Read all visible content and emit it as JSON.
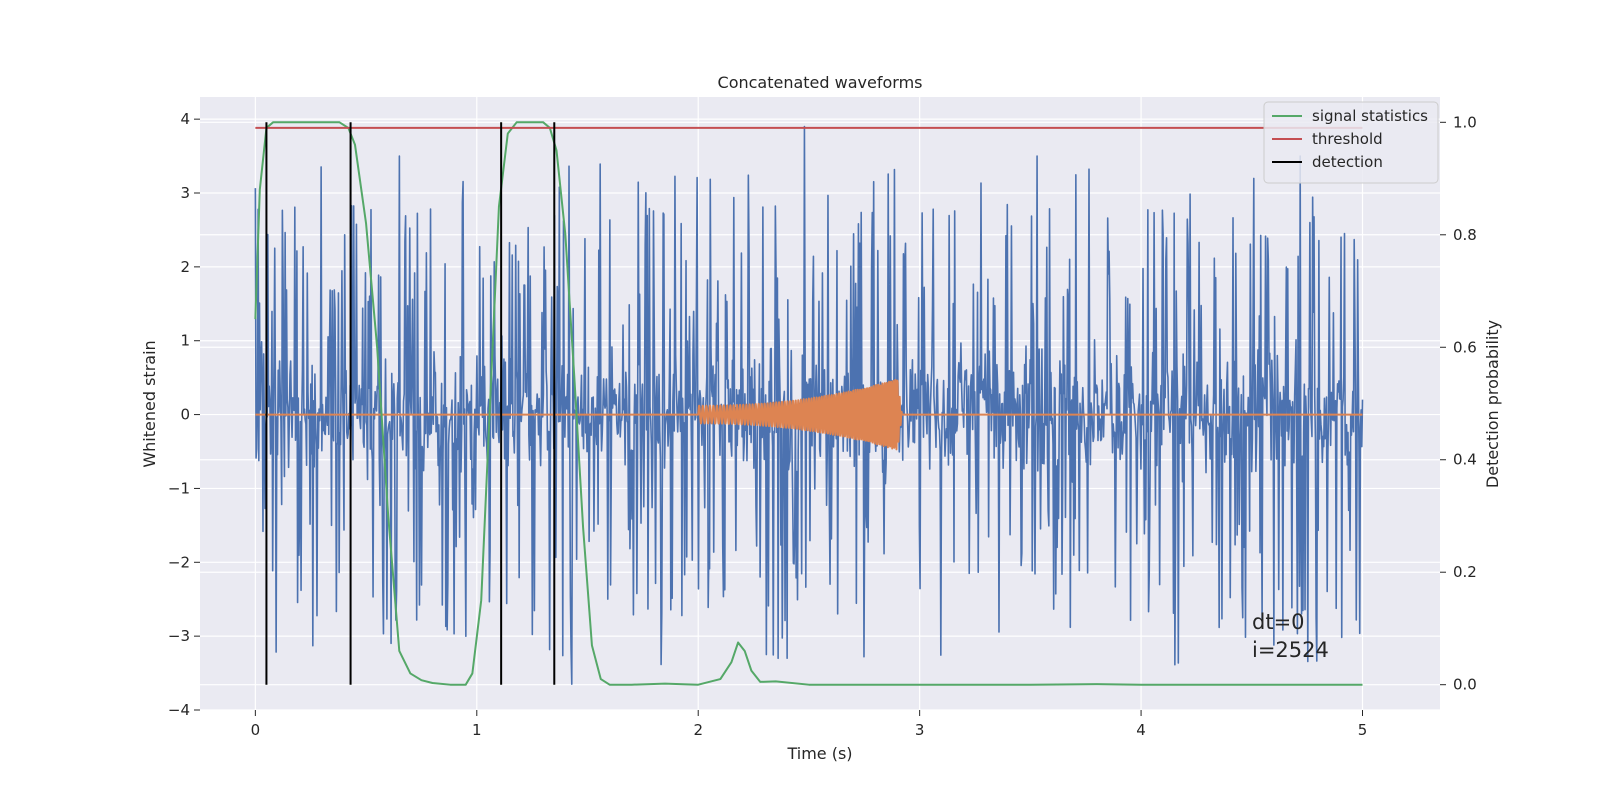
{
  "chart_data": {
    "type": "line",
    "title": "Concatenated waveforms",
    "xlabel": "Time (s)",
    "ylabel": "Whitened strain",
    "y2label": "Detection probability",
    "xlim": [
      -0.25,
      5.35
    ],
    "ylim": [
      -4.0,
      4.3
    ],
    "y2lim": [
      -0.045,
      1.045
    ],
    "x_ticks": [
      0,
      1,
      2,
      3,
      4,
      5
    ],
    "x_tick_labels": [
      "0",
      "1",
      "2",
      "3",
      "4",
      "5"
    ],
    "y_ticks": [
      4,
      3,
      2,
      1,
      0,
      -1,
      -2,
      -3,
      -4
    ],
    "y_tick_labels": [
      "4",
      "3",
      "2",
      "1",
      "0",
      "−1",
      "−2",
      "−3",
      "−4"
    ],
    "y2_ticks": [
      1.0,
      0.8,
      0.6,
      0.4,
      0.2,
      0.0
    ],
    "y2_tick_labels": [
      "1.0",
      "0.8",
      "0.6",
      "0.4",
      "0.2",
      "0.0"
    ],
    "grid": true,
    "legend_position": "top-right",
    "annotation_lines": [
      "dt=0",
      "i=2524"
    ],
    "series": [
      {
        "name": "",
        "kind": "noise",
        "color": "#4c72b0",
        "axis": "left",
        "x_range": [
          0,
          5
        ],
        "samples": 1600,
        "core_amplitude": 1.35,
        "spike_max": [
          3.9,
          -3.65
        ],
        "notable_peaks": [
          {
            "x": 2.48,
            "y": 3.9
          },
          {
            "x": 0.65,
            "y": 3.5
          },
          {
            "x": 4.72,
            "y": 3.5
          },
          {
            "x": 3.53,
            "y": 3.5
          },
          {
            "x": 1.43,
            "y": -3.65
          },
          {
            "x": 2.36,
            "y": -3.3
          },
          {
            "x": 4.46,
            "y": -2.75
          },
          {
            "x": 4.79,
            "y": -2.75
          }
        ]
      },
      {
        "name": "",
        "kind": "chirp",
        "color": "#dd8452",
        "axis": "left",
        "x_range": [
          2.0,
          2.92
        ],
        "start_amplitude": 0.12,
        "peak_amplitude": 0.48,
        "peak_x": 2.9
      },
      {
        "name": "signal statistics",
        "color": "#55a868",
        "axis": "right",
        "x": [
          0.0,
          0.02,
          0.05,
          0.08,
          0.12,
          0.2,
          0.3,
          0.38,
          0.42,
          0.45,
          0.5,
          0.55,
          0.6,
          0.65,
          0.7,
          0.75,
          0.8,
          0.88,
          0.95,
          0.98,
          1.02,
          1.06,
          1.1,
          1.14,
          1.18,
          1.25,
          1.3,
          1.33,
          1.36,
          1.4,
          1.44,
          1.48,
          1.52,
          1.56,
          1.6,
          1.7,
          1.85,
          2.0,
          2.1,
          2.15,
          2.18,
          2.21,
          2.24,
          2.28,
          2.35,
          2.5,
          3.0,
          3.5,
          3.8,
          4.0,
          4.5,
          5.0
        ],
        "values": [
          0.65,
          0.88,
          0.99,
          1.0,
          1.0,
          1.0,
          1.0,
          1.0,
          0.99,
          0.96,
          0.82,
          0.6,
          0.3,
          0.06,
          0.02,
          0.008,
          0.003,
          0.0,
          0.0,
          0.02,
          0.15,
          0.5,
          0.85,
          0.98,
          1.0,
          1.0,
          1.0,
          0.99,
          0.95,
          0.8,
          0.55,
          0.28,
          0.07,
          0.01,
          0.0,
          0.0,
          0.002,
          0.0,
          0.01,
          0.04,
          0.075,
          0.06,
          0.025,
          0.005,
          0.006,
          0.0,
          0.0,
          0.0,
          0.001,
          0.0,
          0.0,
          0.0
        ]
      },
      {
        "name": "threshold",
        "color": "#c44e52",
        "axis": "right",
        "x": [
          0.0,
          5.0
        ],
        "values": [
          0.99,
          0.99
        ]
      },
      {
        "name": "detection",
        "color": "#000000",
        "axis": "right",
        "kind": "vlines",
        "x": [
          0.05,
          0.43,
          1.11,
          1.35
        ],
        "range": [
          0.0,
          1.0
        ]
      }
    ]
  }
}
